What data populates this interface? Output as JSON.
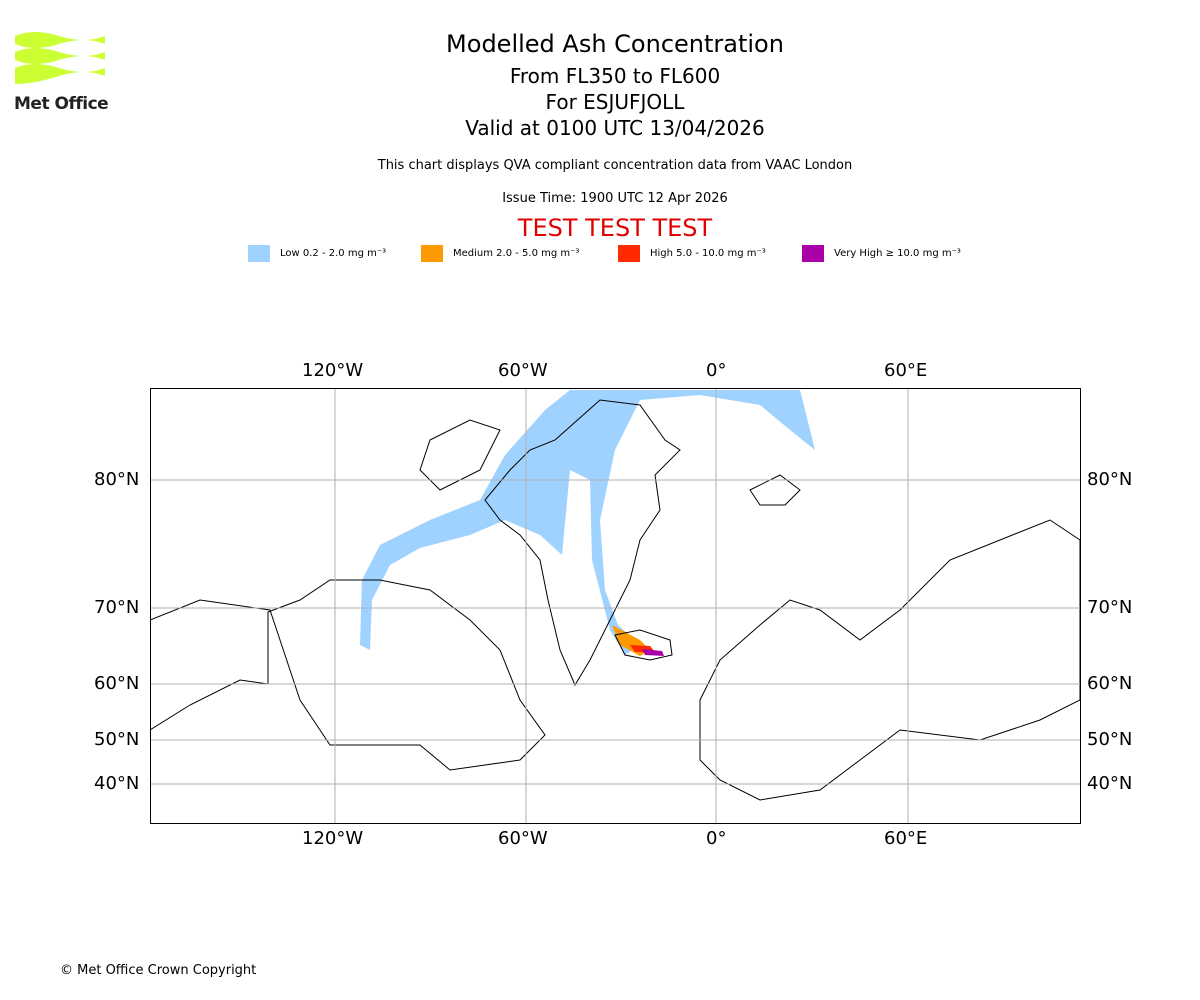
{
  "logo": {
    "text": "Met Office",
    "color": "#ccff33"
  },
  "header": {
    "title": "Modelled Ash Concentration",
    "levels": "From FL350 to FL600",
    "volcano": "For ESJUFJOLL",
    "valid": "Valid at 0100 UTC 13/04/2026",
    "subtitle": "This chart displays QVA compliant concentration data from VAAC London",
    "issue_time": "Issue Time: 1900 UTC 12 Apr 2026",
    "test_banner": "TEST TEST TEST"
  },
  "legend": [
    {
      "label": "Low 0.2 - 2.0 mg m⁻³",
      "color": "#a0d2ff"
    },
    {
      "label": "Medium 2.0 - 5.0 mg m⁻³",
      "color": "#ff9900"
    },
    {
      "label": "High 5.0 - 10.0 mg m⁻³",
      "color": "#ff2a00"
    },
    {
      "label": "Very High ≥ 10.0 mg m⁻³",
      "color": "#aa00aa"
    }
  ],
  "map": {
    "lon_labels": [
      "120°W",
      "60°W",
      "0°",
      "60°E"
    ],
    "lat_labels": [
      "80°N",
      "70°N",
      "60°N",
      "50°N",
      "40°N"
    ]
  },
  "footer": {
    "copyright": "© Met Office Crown Copyright"
  }
}
